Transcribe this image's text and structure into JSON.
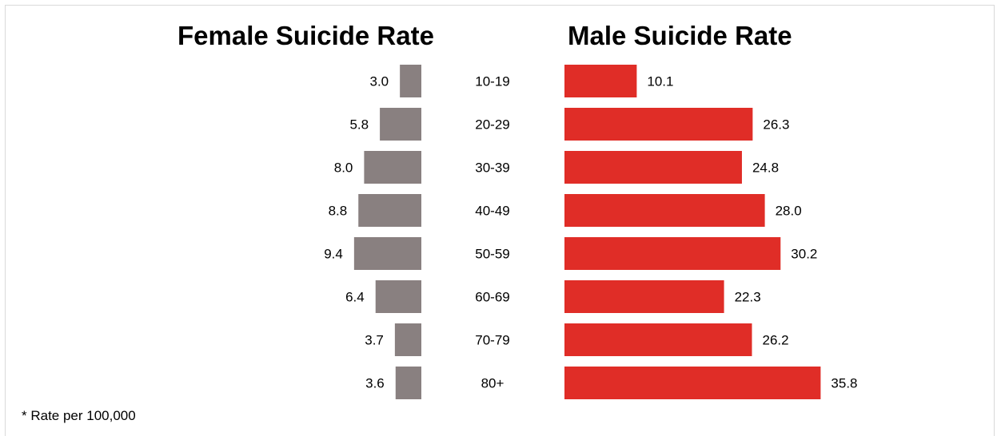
{
  "chart_data": {
    "type": "bar",
    "footnote": "* Rate per 100,000",
    "categories": [
      "10-19",
      "20-29",
      "30-39",
      "40-49",
      "50-59",
      "60-69",
      "70-79",
      "80+"
    ],
    "series": [
      {
        "name": "Female Suicide Rate",
        "values": [
          3.0,
          5.8,
          8.0,
          8.8,
          9.4,
          6.4,
          3.7,
          3.6
        ],
        "labels": [
          "3.0",
          "5.8",
          "8.0",
          "8.8",
          "9.4",
          "6.4",
          "3.7",
          "3.6"
        ],
        "color": "#898080"
      },
      {
        "name": "Male Suicide Rate",
        "values": [
          10.1,
          26.3,
          24.8,
          28.0,
          30.2,
          22.3,
          26.2,
          35.8
        ],
        "labels": [
          "10.1",
          "26.3",
          "24.8",
          "28.0",
          "30.2",
          "22.3",
          "26.2",
          "35.8"
        ],
        "color": "#e02d27"
      }
    ]
  }
}
